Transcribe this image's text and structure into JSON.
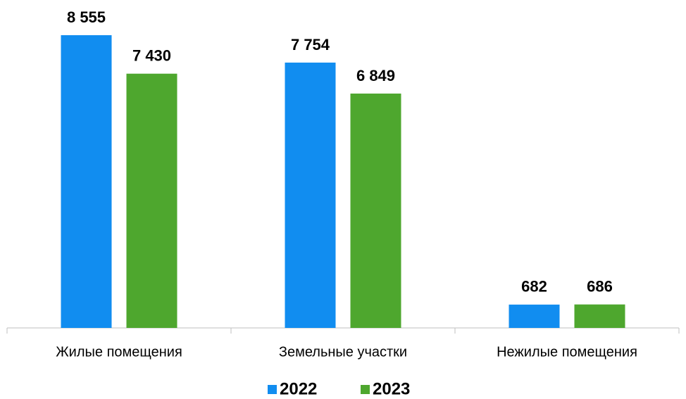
{
  "chart_data": {
    "type": "bar",
    "categories": [
      "Жилые помещения",
      "Земельные участки",
      "Нежилые помещения"
    ],
    "series": [
      {
        "name": "2022",
        "color": "#118df0",
        "values": [
          8555,
          7754,
          682
        ],
        "value_labels": [
          "8 555",
          "7 754",
          "682"
        ]
      },
      {
        "name": "2023",
        "color": "#4ea72e",
        "values": [
          7430,
          6849,
          686
        ],
        "value_labels": [
          "7 430",
          "6 849",
          "686"
        ]
      }
    ]
  }
}
